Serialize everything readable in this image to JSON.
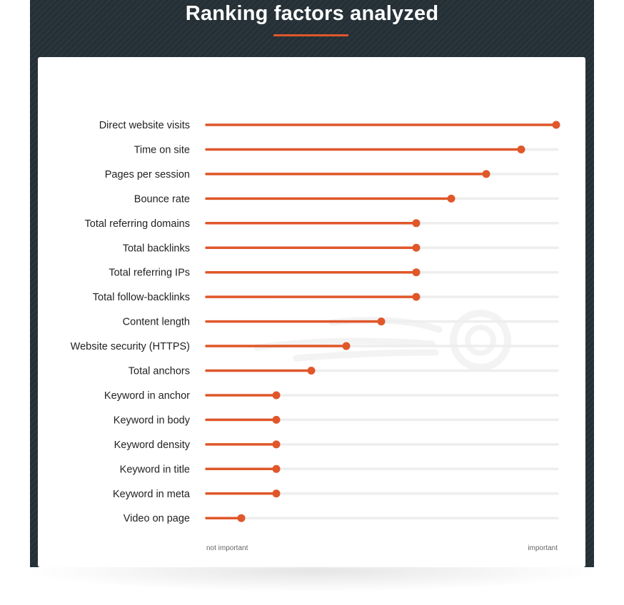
{
  "header": {
    "title": "Ranking factors analyzed"
  },
  "colors": {
    "background": "#243036",
    "accent": "#e0572a",
    "track": "#eeeeee",
    "card": "#ffffff"
  },
  "chart_data": {
    "type": "bar",
    "style": "lollipop",
    "orientation": "horizontal",
    "title": "Ranking factors analyzed",
    "categories": [
      "Direct website visits",
      "Time on site",
      "Pages per session",
      "Bounce rate",
      "Total referring domains",
      "Total backlinks",
      "Total referring IPs",
      "Total follow-backlinks",
      "Content length",
      "Website security (HTTPS)",
      "Total anchors",
      "Keyword in anchor",
      "Keyword in body",
      "Keyword density",
      "Keyword in title",
      "Keyword in meta",
      "Video on page"
    ],
    "values": [
      1.0,
      0.9,
      0.8,
      0.7,
      0.6,
      0.6,
      0.6,
      0.6,
      0.5,
      0.4,
      0.3,
      0.2,
      0.2,
      0.2,
      0.2,
      0.2,
      0.1
    ],
    "xlim": [
      0,
      1
    ],
    "axis_min_label": "not important",
    "axis_max_label": "important",
    "grid": false,
    "legend": "none"
  }
}
